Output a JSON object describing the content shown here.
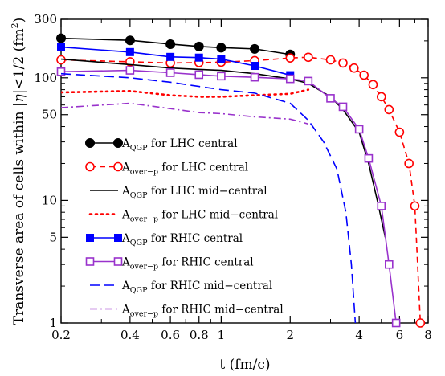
{
  "chart_data": {
    "type": "line",
    "xlabel": "t (fm/c)",
    "ylabel_parts": {
      "before": "Transverse area of cells within |",
      "eta": "η",
      "after": "|<1/2 (fm",
      "sup": "2",
      "close": ")"
    },
    "x_scale": "log",
    "y_scale": "log",
    "xlim": [
      0.2,
      8
    ],
    "ylim": [
      1,
      300
    ],
    "x_ticks": [
      0.2,
      0.4,
      0.6,
      0.8,
      1,
      2,
      4,
      6,
      8
    ],
    "x_tick_labels": [
      "0.2",
      "0.4",
      "0.6",
      "0.8",
      "1",
      "2",
      "4",
      "6",
      "8"
    ],
    "y_ticks": [
      1,
      5,
      10,
      50,
      100,
      300
    ],
    "y_tick_labels": [
      "1",
      "5",
      "10",
      "50",
      "100",
      "300"
    ],
    "legend_position": "center-left",
    "series": [
      {
        "label_main": "A",
        "label_sub": "QGP",
        "label_rest": " for LHC central",
        "color": "#000000",
        "line": "solid",
        "marker": "filled-circle",
        "x": [
          0.2,
          0.4,
          0.6,
          0.8,
          1.0,
          1.4,
          2.0
        ],
        "y": [
          210,
          202,
          188,
          180,
          176,
          172,
          155
        ]
      },
      {
        "label_main": "A",
        "label_sub": "over−p",
        "label_rest": " for LHC central",
        "color": "#ff0000",
        "line": "dashed",
        "marker": "open-circle",
        "x": [
          0.2,
          0.4,
          0.6,
          0.8,
          1.0,
          1.4,
          2.0,
          2.4,
          3.0,
          3.4,
          3.8,
          4.2,
          4.6,
          5.0,
          5.4,
          6.0,
          6.6,
          7.0,
          7.4
        ],
        "y": [
          140,
          135,
          132,
          133,
          134,
          138,
          145,
          147,
          140,
          132,
          120,
          105,
          88,
          70,
          55,
          36,
          20,
          9,
          1
        ]
      },
      {
        "label_main": "A",
        "label_sub": "QGP",
        "label_rest": " for LHC mid−central",
        "color": "#000000",
        "line": "solid",
        "marker": "none",
        "x": [
          0.2,
          0.4,
          0.6,
          0.8,
          1.0,
          1.4,
          2.0,
          2.4,
          3.0,
          3.4,
          4.0,
          4.4,
          4.8,
          5.2
        ],
        "y": [
          142,
          128,
          120,
          117,
          115,
          108,
          98,
          90,
          70,
          55,
          36,
          20,
          10,
          5
        ]
      },
      {
        "label_main": "A",
        "label_sub": "over−p",
        "label_rest": " for LHC mid−central",
        "color": "#ff0000",
        "line": "dotted",
        "marker": "none",
        "x": [
          0.2,
          0.4,
          0.6,
          0.8,
          1.0,
          1.4,
          2.0,
          2.4
        ],
        "y": [
          76,
          78,
          72,
          70,
          70,
          72,
          74,
          80
        ]
      },
      {
        "label_main": "A",
        "label_sub": "QGP",
        "label_rest": " for RHIC central",
        "color": "#0000ff",
        "line": "solid",
        "marker": "filled-square",
        "x": [
          0.2,
          0.4,
          0.6,
          0.8,
          1.0,
          1.4,
          2.0
        ],
        "y": [
          178,
          162,
          148,
          146,
          142,
          125,
          105
        ]
      },
      {
        "label_main": "A",
        "label_sub": "over−p",
        "label_rest": " for RHIC central",
        "color": "#9932cc",
        "line": "solid",
        "marker": "open-square",
        "x": [
          0.2,
          0.4,
          0.6,
          0.8,
          1.0,
          1.4,
          2.0,
          2.4,
          3.0,
          3.4,
          4.0,
          4.4,
          5.0,
          5.4,
          5.8
        ],
        "y": [
          112,
          115,
          110,
          106,
          103,
          101,
          98,
          94,
          68,
          58,
          38,
          22,
          9,
          3,
          1
        ]
      },
      {
        "label_main": "A",
        "label_sub": "QGP",
        "label_rest": " for RHIC mid−central",
        "color": "#0000ff",
        "line": "longdash",
        "marker": "none",
        "x": [
          0.2,
          0.4,
          0.6,
          0.8,
          1.0,
          1.4,
          2.0,
          2.4,
          2.8,
          3.2,
          3.5,
          3.7,
          3.85
        ],
        "y": [
          108,
          100,
          92,
          85,
          80,
          75,
          62,
          45,
          30,
          18,
          8,
          3,
          1
        ]
      },
      {
        "label_main": "A",
        "label_sub": "over−p",
        "label_rest": " for RHIC mid−central",
        "color": "#9932cc",
        "line": "dashdot",
        "marker": "none",
        "x": [
          0.2,
          0.4,
          0.6,
          0.8,
          1.0,
          1.4,
          2.0,
          2.4
        ],
        "y": [
          57,
          62,
          56,
          52,
          51,
          48,
          46,
          42
        ]
      }
    ]
  }
}
